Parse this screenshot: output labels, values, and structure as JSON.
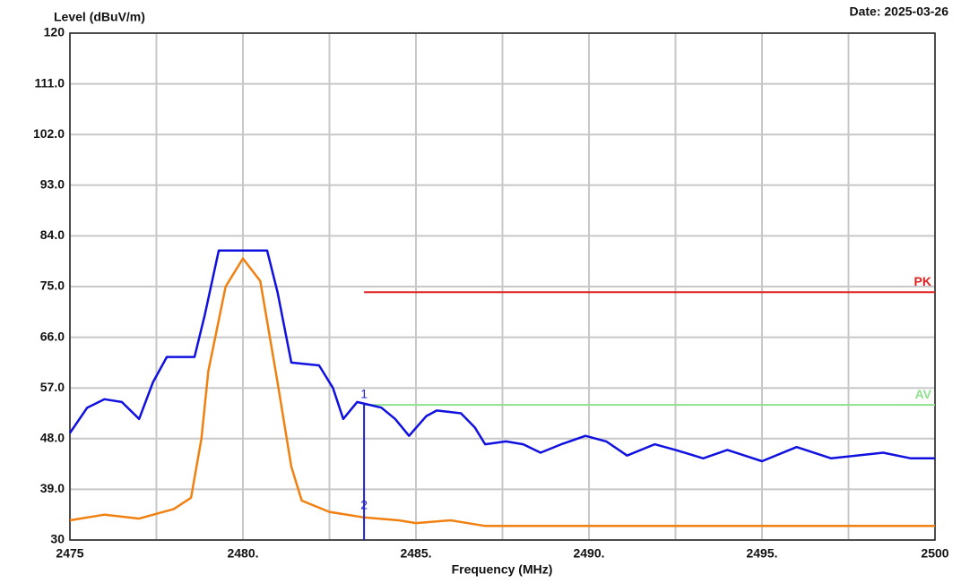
{
  "chart_data": {
    "type": "line",
    "ylabel": "Level (dBuV/m)",
    "date": "Date: 2025-03-26",
    "xlabel": "Frequency (MHz)",
    "xlim": [
      2475,
      2500
    ],
    "xticks": [
      2475,
      {
        "value": 2480,
        "label": "2480."
      },
      {
        "value": 2485,
        "label": "2485."
      },
      {
        "value": 2490,
        "label": "2490."
      },
      {
        "value": 2495,
        "label": "2495."
      },
      2500
    ],
    "x_minor_grid": [
      2477.5,
      2482.5,
      2487.5,
      2492.5,
      2497.5
    ],
    "ylim": [
      30,
      120
    ],
    "yticks": [
      30,
      {
        "value": 39,
        "label": "39.0"
      },
      {
        "value": 48,
        "label": "48.0"
      },
      {
        "value": 57,
        "label": "57.0"
      },
      {
        "value": 66,
        "label": "66.0"
      },
      {
        "value": 75,
        "label": "75.0"
      },
      {
        "value": 84,
        "label": "84.0"
      },
      {
        "value": 93,
        "label": "93.0"
      },
      {
        "value": 102,
        "label": "102.0"
      },
      {
        "value": 111,
        "label": "111.0"
      },
      120
    ],
    "grid": true,
    "series": [
      {
        "color": "#1010e0",
        "x": [
          2475,
          2475.5,
          2476,
          2476.5,
          2477,
          2477.4,
          2477.8,
          2478.6,
          2478.9,
          2479.3,
          2480.7,
          2481,
          2481.4,
          2482.2,
          2482.6,
          2482.9,
          2483.3,
          2484,
          2484.4,
          2484.8,
          2485.3,
          2485.6,
          2486.3,
          2486.7,
          2487,
          2487.6,
          2488.1,
          2488.6,
          2489.2,
          2489.9,
          2490.5,
          2491.1,
          2491.9,
          2492.5,
          2493.3,
          2494,
          2495,
          2496,
          2497,
          2498.5,
          2499.3,
          2500
        ],
        "values": [
          49,
          53.5,
          55,
          54.5,
          51.5,
          58,
          62.5,
          62.5,
          70,
          81.4,
          81.4,
          74,
          61.5,
          61,
          57,
          51.5,
          54.5,
          53.5,
          51.5,
          48.5,
          52,
          53,
          52.5,
          50,
          47,
          47.5,
          47,
          45.5,
          47,
          48.5,
          47.5,
          45,
          47,
          46,
          44.5,
          46,
          44,
          46.5,
          44.5,
          45.5,
          44.5,
          44.5
        ]
      },
      {
        "color": "#f08010",
        "x": [
          2475,
          2476,
          2477,
          2478,
          2478.5,
          2478.8,
          2479,
          2479.5,
          2480,
          2480.5,
          2481,
          2481.4,
          2481.7,
          2482.5,
          2483.5,
          2484.5,
          2485,
          2486,
          2487,
          2490,
          2500
        ],
        "values": [
          33.5,
          34.5,
          33.8,
          35.5,
          37.5,
          48,
          60,
          75,
          80,
          76,
          58,
          43,
          37,
          35,
          34,
          33.5,
          33,
          33.5,
          32.5,
          32.5,
          32.5
        ]
      }
    ],
    "limits": [
      {
        "name": "PK",
        "color": "#e02020",
        "value": 74,
        "x": [
          2483.5,
          2500
        ]
      },
      {
        "name": "AV",
        "color": "#90e090",
        "value": 54,
        "x": [
          2483.5,
          2500
        ]
      }
    ],
    "markers": [
      {
        "label": "1",
        "x": 2483.5,
        "y": 54.2
      },
      {
        "label": "2",
        "x": 2483.5,
        "y": 34.5
      }
    ],
    "marker_color": "#2020d0"
  }
}
